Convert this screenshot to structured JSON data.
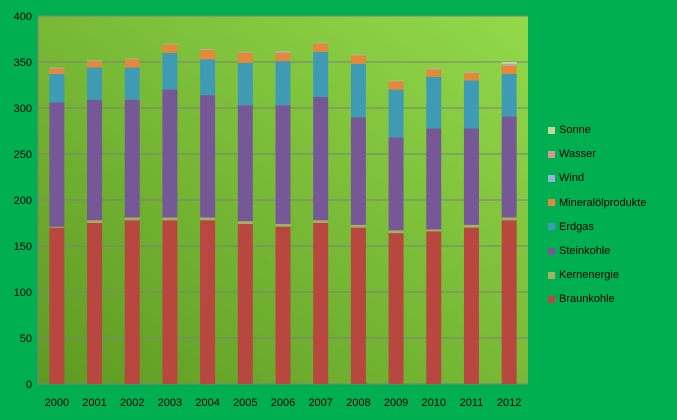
{
  "chart_data": {
    "type": "bar",
    "stacked": true,
    "title": "",
    "xlabel": "",
    "ylabel": "",
    "ylim": [
      0,
      400
    ],
    "yticks": [
      0,
      50,
      100,
      150,
      200,
      250,
      300,
      350,
      400
    ],
    "grid": true,
    "legend_position": "right",
    "categories": [
      "2000",
      "2001",
      "2002",
      "2003",
      "2004",
      "2005",
      "2006",
      "2007",
      "2008",
      "2009",
      "2010",
      "2011",
      "2012"
    ],
    "series": [
      {
        "name": "Braunkohle",
        "color": "#b8473f",
        "values": [
          170,
          175,
          178,
          178,
          178,
          174,
          171,
          175,
          170,
          164,
          166,
          170,
          178
        ]
      },
      {
        "name": "Kernenergie",
        "color": "#a3b065",
        "values": [
          1,
          3,
          3,
          3,
          3,
          3,
          3,
          3,
          3,
          3,
          2,
          3,
          3
        ]
      },
      {
        "name": "Steinkohle",
        "color": "#765896",
        "values": [
          135,
          131,
          128,
          139,
          133,
          126,
          129,
          134,
          117,
          101,
          110,
          105,
          110
        ]
      },
      {
        "name": "Erdgas",
        "color": "#3f9bb3",
        "values": [
          31,
          35,
          35,
          40,
          39,
          46,
          48,
          49,
          58,
          52,
          56,
          52,
          46
        ]
      },
      {
        "name": "Mineralölprodukte",
        "color": "#e5883a",
        "values": [
          6,
          7,
          9,
          9,
          10,
          11,
          9,
          9,
          9,
          9,
          8,
          8,
          9
        ]
      },
      {
        "name": "Wind",
        "color": "#95b3d7",
        "values": [
          0.5,
          0.5,
          0.5,
          0.5,
          0.5,
          0.5,
          1,
          0.5,
          0.5,
          0.5,
          0.5,
          0.5,
          1
        ]
      },
      {
        "name": "Wasser",
        "color": "#d99694",
        "values": [
          0.3,
          0.3,
          0.3,
          0.3,
          0.3,
          0.3,
          0.5,
          0.3,
          0.3,
          0.3,
          0.3,
          0.3,
          1
        ]
      },
      {
        "name": "Sonne",
        "color": "#c3d69b",
        "values": [
          0.2,
          0.2,
          0.2,
          0.2,
          0.2,
          0.2,
          0.5,
          0.2,
          0.2,
          0.2,
          0.2,
          0.2,
          2
        ]
      }
    ]
  }
}
